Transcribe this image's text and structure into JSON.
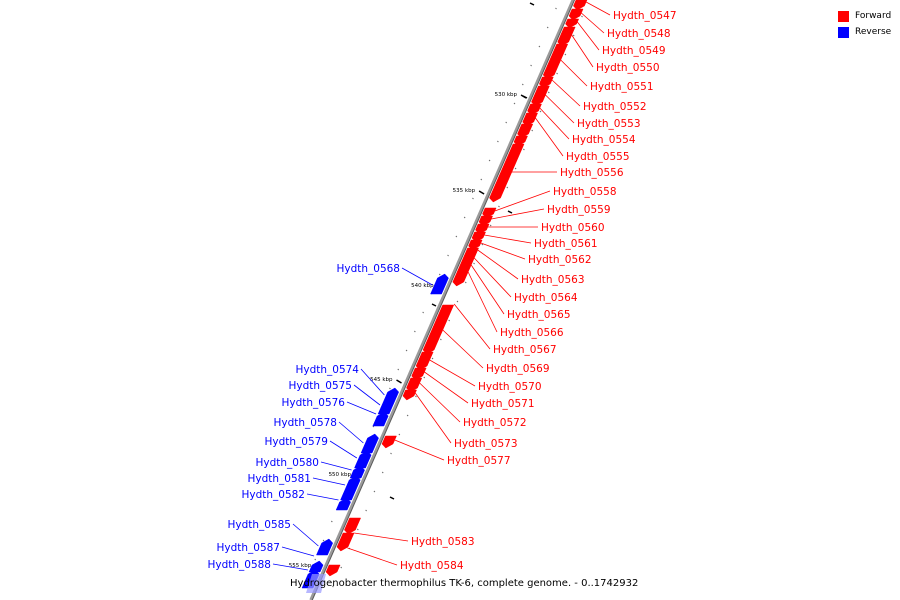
{
  "legend": {
    "forward_label": "Forward",
    "reverse_label": "Reverse",
    "forward_color": "#ff0000",
    "reverse_color": "#0000ff"
  },
  "caption": "Hydrogenobacter thermophilus TK-6, complete genome. - 0..1742932",
  "ticks": [
    {
      "label": "530 kbp",
      "position_kbp": 530
    },
    {
      "label": "535 kbp",
      "position_kbp": 535
    },
    {
      "label": "540 kbp",
      "position_kbp": 540
    },
    {
      "label": "545 kbp",
      "position_kbp": 545
    },
    {
      "label": "550 kbp",
      "position_kbp": 550
    },
    {
      "label": "555 kbp",
      "position_kbp": 555
    }
  ],
  "genes_forward": [
    "Hydth_0547",
    "Hydth_0548",
    "Hydth_0549",
    "Hydth_0550",
    "Hydth_0551",
    "Hydth_0552",
    "Hydth_0553",
    "Hydth_0554",
    "Hydth_0555",
    "Hydth_0556",
    "Hydth_0558",
    "Hydth_0559",
    "Hydth_0560",
    "Hydth_0561",
    "Hydth_0562",
    "Hydth_0563",
    "Hydth_0564",
    "Hydth_0565",
    "Hydth_0566",
    "Hydth_0567",
    "Hydth_0569",
    "Hydth_0570",
    "Hydth_0571",
    "Hydth_0572",
    "Hydth_0573",
    "Hydth_0577",
    "Hydth_0583",
    "Hydth_0584"
  ],
  "genes_reverse": [
    "Hydth_0568",
    "Hydth_0574",
    "Hydth_0575",
    "Hydth_0576",
    "Hydth_0578",
    "Hydth_0579",
    "Hydth_0580",
    "Hydth_0581",
    "Hydth_0582",
    "Hydth_0585",
    "Hydth_0587",
    "Hydth_0588"
  ]
}
